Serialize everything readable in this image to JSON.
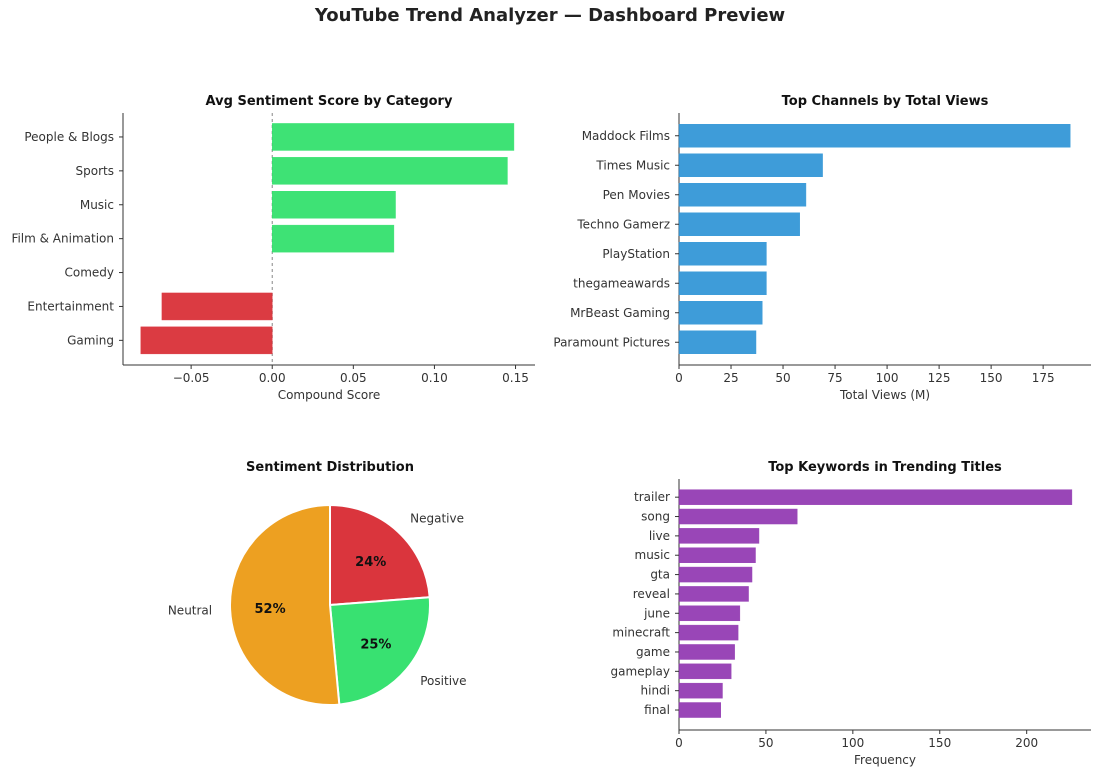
{
  "title": "YouTube Trend Analyzer — Dashboard Preview",
  "colors": {
    "positive": "#2ee06a",
    "negative": "#d92b33",
    "channels": "#2e94d6",
    "keywords": "#9137b1",
    "neutral": "#ed9b16"
  },
  "chart_data": [
    {
      "type": "bar",
      "orientation": "horizontal",
      "title": "Avg Sentiment Score by Category",
      "xlabel": "Compound Score",
      "ylabel": "",
      "categories": [
        "People & Blogs",
        "Sports",
        "Music",
        "Film & Animation",
        "Comedy",
        "Entertainment",
        "Gaming"
      ],
      "values": [
        0.149,
        0.145,
        0.076,
        0.075,
        0.0,
        -0.068,
        -0.081
      ],
      "xlim": [
        -0.092,
        0.162
      ],
      "xticks": [
        "−0.05",
        "0.00",
        "0.05",
        "0.10",
        "0.15"
      ],
      "grid": false
    },
    {
      "type": "bar",
      "orientation": "horizontal",
      "title": "Top Channels by Total Views",
      "xlabel": "Total Views (M)",
      "ylabel": "",
      "categories": [
        "Maddock Films",
        "Times Music",
        "Pen Movies",
        "Techno Gamerz",
        "PlayStation",
        "thegameawards",
        "MrBeast Gaming",
        "Paramount Pictures"
      ],
      "values": [
        188,
        69,
        61,
        58,
        42,
        42,
        40,
        37
      ],
      "xlim": [
        0,
        198
      ],
      "xticks": [
        "0",
        "25",
        "50",
        "75",
        "100",
        "125",
        "150",
        "175"
      ],
      "grid": false
    },
    {
      "type": "pie",
      "title": "Sentiment Distribution",
      "labels": [
        "Negative",
        "Positive",
        "Neutral"
      ],
      "values": [
        24,
        25,
        52
      ],
      "pct_labels": [
        "24%",
        "25%",
        "52%"
      ],
      "legend": "none"
    },
    {
      "type": "bar",
      "orientation": "horizontal",
      "title": "Top Keywords in Trending Titles",
      "xlabel": "Frequency",
      "ylabel": "",
      "categories": [
        "trailer",
        "song",
        "live",
        "music",
        "gta",
        "reveal",
        "june",
        "minecraft",
        "game",
        "gameplay",
        "hindi",
        "final"
      ],
      "values": [
        226,
        68,
        46,
        44,
        42,
        40,
        35,
        34,
        32,
        30,
        25,
        24
      ],
      "xlim": [
        0,
        237
      ],
      "xticks": [
        "0",
        "50",
        "100",
        "150",
        "200"
      ],
      "grid": false
    }
  ]
}
